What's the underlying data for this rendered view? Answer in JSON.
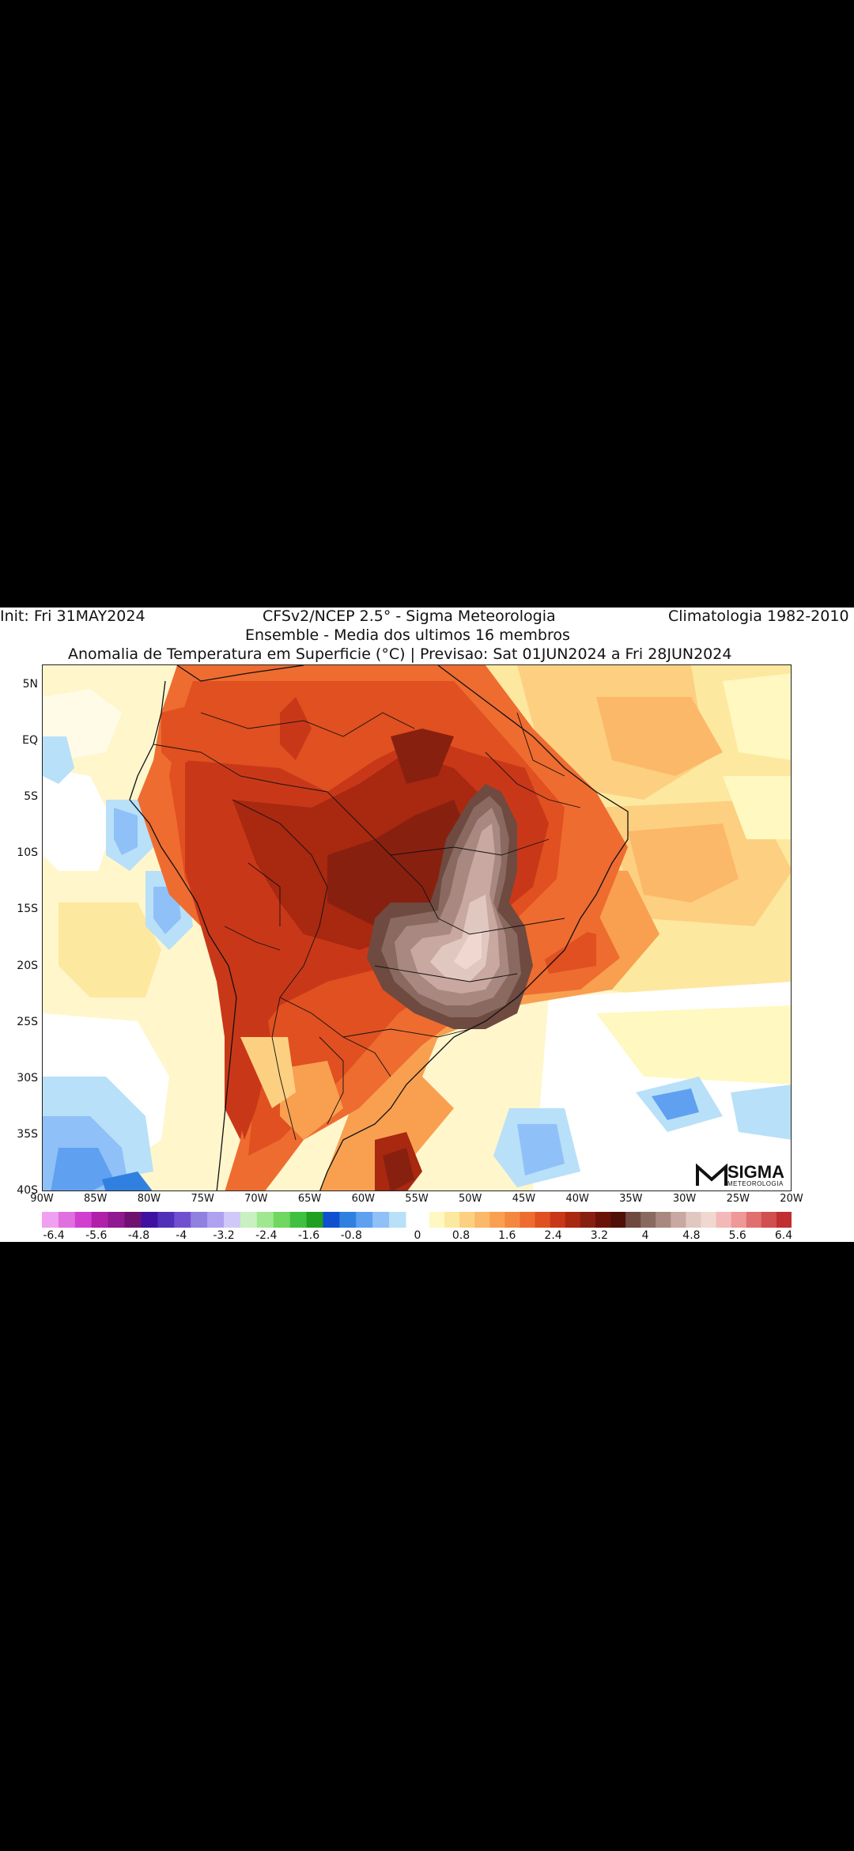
{
  "header": {
    "init": "Init: Fri 31MAY2024",
    "model": "CFSv2/NCEP 2.5° - Sigma Meteorologia",
    "climatology": "Climatologia 1982-2010",
    "ensemble": "Ensemble - Media dos ultimos 16 membros",
    "title": "Anomalia de Temperatura em Superficie (°C) | Previsao: Sat 01JUN2024 a Fri 28JUN2024"
  },
  "axes": {
    "y_ticks": [
      "5N",
      "EQ",
      "5S",
      "10S",
      "15S",
      "20S",
      "25S",
      "30S",
      "35S",
      "40S"
    ],
    "x_ticks": [
      "90W",
      "85W",
      "80W",
      "75W",
      "70W",
      "65W",
      "60W",
      "55W",
      "50W",
      "45W",
      "40W",
      "35W",
      "30W",
      "25W",
      "20W"
    ]
  },
  "colorbar": {
    "tick_labels": [
      "-6.4",
      "-5.6",
      "-4.8",
      "-4",
      "-3.2",
      "-2.4",
      "-1.6",
      "-0.8",
      "0",
      "0.8",
      "1.6",
      "2.4",
      "3.2",
      "4",
      "4.8",
      "5.6",
      "6.4"
    ],
    "colors_negative": [
      "#f0a0f0",
      "#e070e0",
      "#d040d0",
      "#b020a8",
      "#901890",
      "#701070",
      "#4010a0",
      "#5030b8",
      "#7050d0",
      "#9080e0",
      "#b0a0f0",
      "#d0c8f8",
      "#c8f0c0",
      "#a0e890",
      "#70d860",
      "#40c040",
      "#20a020",
      "#1050d0",
      "#3080e0",
      "#60a0f0",
      "#90c0f8",
      "#b8e0f8"
    ],
    "colors_positive": [
      "#fff8c0",
      "#fde8a0",
      "#fcd080",
      "#fbb868",
      "#f8a050",
      "#f48840",
      "#ee6c30",
      "#e05020",
      "#c83818",
      "#a82810",
      "#882010",
      "#6a1408",
      "#501008",
      "#6e4a40",
      "#8a6a60",
      "#a88880",
      "#c8a8a0",
      "#e0c8c0",
      "#f0d8d0",
      "#f4b8b8",
      "#ee9898",
      "#e07070",
      "#d05050",
      "#c03030"
    ]
  },
  "logo": {
    "name": "SIGMA",
    "sub": "METEOROLOGIA"
  }
}
